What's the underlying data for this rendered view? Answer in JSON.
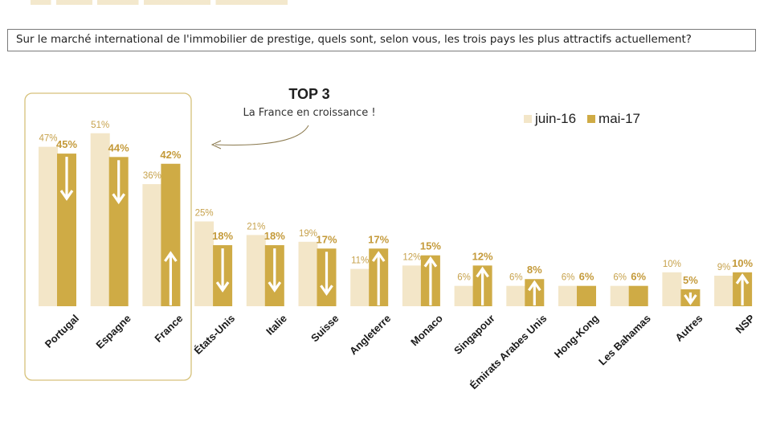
{
  "header": {
    "question": "Sur le marché international de l'immobilier de prestige, quels sont, selon vous, les trois pays les plus attractifs actuellement?"
  },
  "annotation": {
    "title": "TOP 3",
    "subtitle": "La France en croissance !"
  },
  "colors": {
    "juin16": "#f3e6c8",
    "mai17": "#cfab45",
    "box": "#d6c17a",
    "arrow": "#ffffff"
  },
  "chart_data": {
    "type": "bar",
    "categories": [
      "Portugal",
      "Espagne",
      "France",
      "États-Unis",
      "Italie",
      "Suisse",
      "Angleterre",
      "Monaco",
      "Singapour",
      "Émirats Arabes Unis",
      "Hong-Kong",
      "Les Bahamas",
      "Autres",
      "NSP"
    ],
    "series": [
      {
        "name": "juin-16",
        "values": [
          47,
          51,
          36,
          25,
          21,
          19,
          11,
          12,
          6,
          6,
          6,
          6,
          10,
          9
        ]
      },
      {
        "name": "mai-17",
        "values": [
          45,
          44,
          42,
          18,
          18,
          17,
          17,
          15,
          12,
          8,
          6,
          6,
          5,
          10
        ]
      }
    ],
    "value_labels": {
      "juin-16": [
        "47%",
        "51%",
        "36%",
        "25%",
        "21%",
        "19%",
        "11%",
        "12%",
        "6%",
        "6%",
        "6%",
        "6%",
        "10%",
        "9%"
      ],
      "mai-17": [
        "45%",
        "44%",
        "42%",
        "18%",
        "18%",
        "17%",
        "17%",
        "15%",
        "12%",
        "8%",
        "6%",
        "6%",
        "5%",
        "10%"
      ]
    },
    "trend": [
      "down",
      "down",
      "up",
      "down",
      "down",
      "down",
      "up",
      "up",
      "up",
      "up",
      "none",
      "none",
      "down",
      "up"
    ],
    "legend_position": "top-right",
    "highlight_categories": [
      "Portugal",
      "Espagne",
      "France"
    ],
    "ylim": [
      0,
      55
    ],
    "grid": false
  }
}
